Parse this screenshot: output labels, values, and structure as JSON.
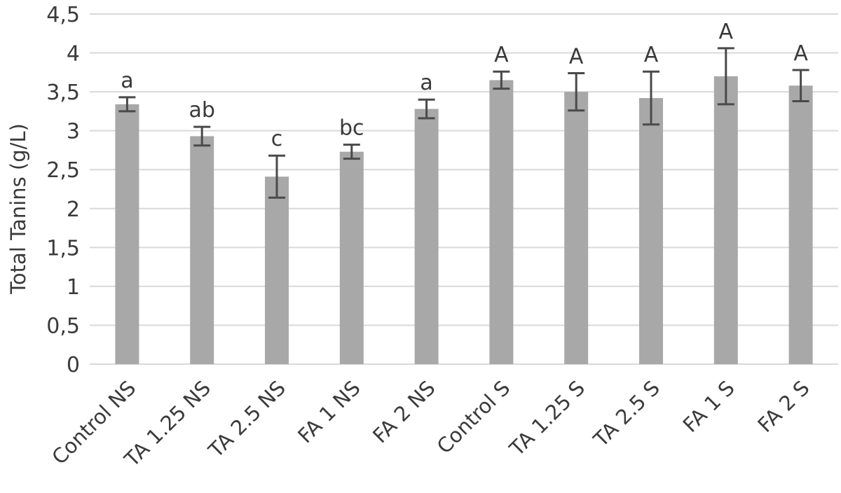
{
  "chart_data": {
    "type": "bar",
    "ylabel": "Total Tanins (g/L)",
    "xlabel": "",
    "ylim": [
      0,
      4.5
    ],
    "yticks": [
      "0",
      "0,5",
      "1",
      "1,5",
      "2",
      "2,5",
      "3",
      "3,5",
      "4",
      "4,5"
    ],
    "grid": true,
    "categories": [
      "Control NS",
      "TA 1.25 NS",
      "TA 2.5 NS",
      "FA 1 NS",
      "FA 2 NS",
      "Control S",
      "TA 1.25 S",
      "TA 2.5 S",
      "FA 1 S",
      "FA 2 S"
    ],
    "values": [
      3.34,
      2.93,
      2.41,
      2.73,
      3.28,
      3.65,
      3.5,
      3.42,
      3.7,
      3.58
    ],
    "errors": [
      0.09,
      0.12,
      0.27,
      0.09,
      0.12,
      0.11,
      0.24,
      0.34,
      0.36,
      0.2
    ],
    "letters": [
      "a",
      "ab",
      "c",
      "bc",
      "a",
      "A",
      "A",
      "A",
      "A",
      "A"
    ],
    "bar_color": "#a8a8a8"
  }
}
